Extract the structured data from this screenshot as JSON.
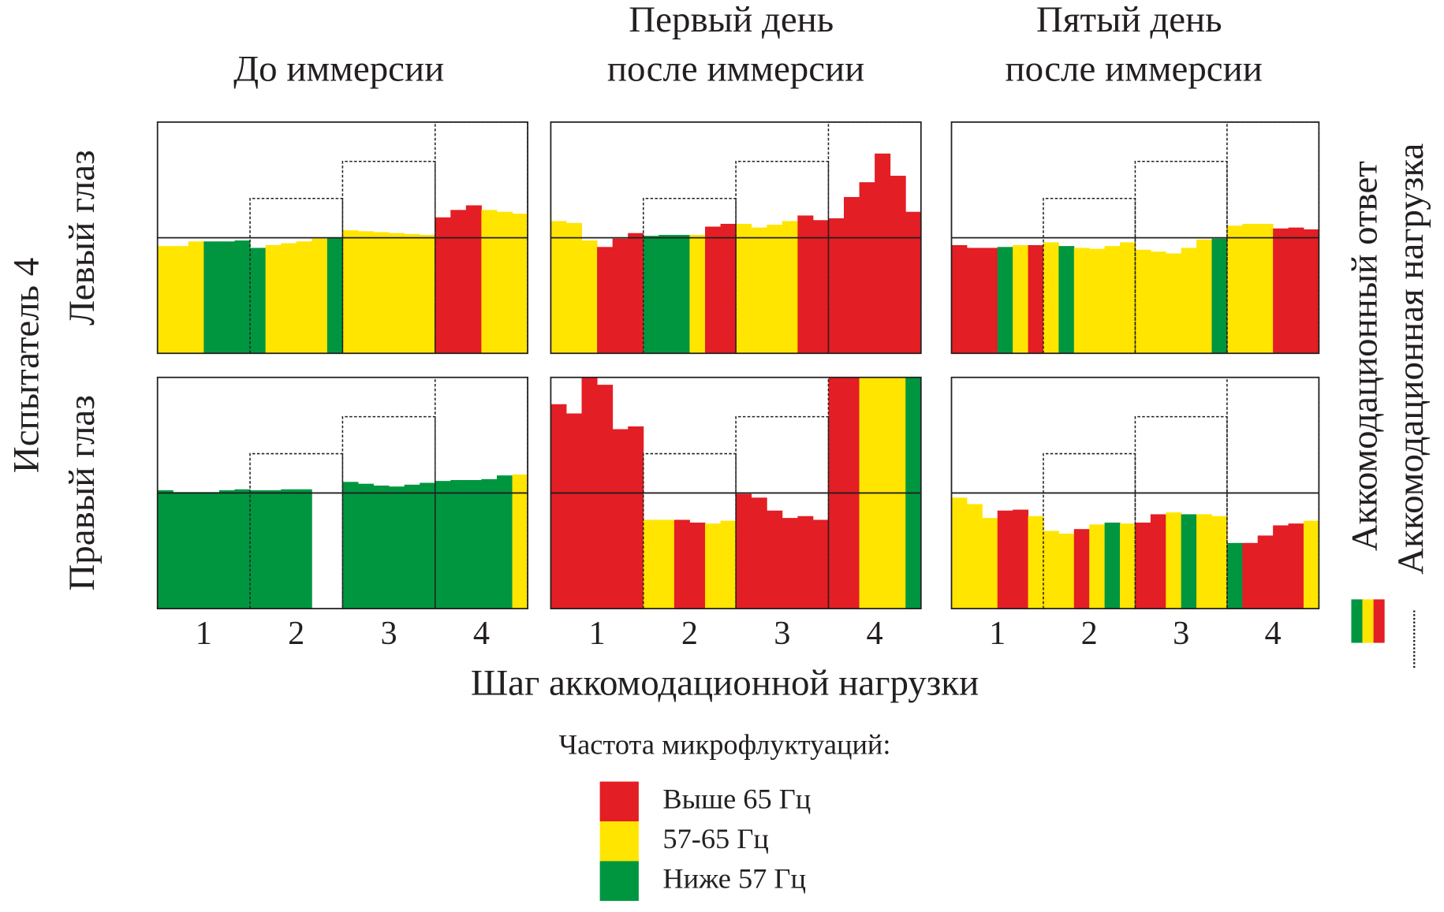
{
  "subject": "Испытатель 4",
  "row_labels": [
    "Левый глаз",
    "Правый глаз"
  ],
  "column_titles": [
    [
      "До иммерсии"
    ],
    [
      "Первый день",
      "после иммерсии"
    ],
    [
      "Пятый день",
      "после иммерсии"
    ]
  ],
  "x_label": "Шаг аккомодационной нагрузки",
  "response_legend": "Аккомодационный ответ",
  "load_legend": "Аккомодационная нагрузка",
  "frequency_legend": {
    "title": "Частота микрофлуктуаций:",
    "items": [
      {
        "name": "Выше 65 Гц",
        "color": "#e31e24"
      },
      {
        "name": "57-65 Гц",
        "color": "#ffe500"
      },
      {
        "name": "Ниже 57 Гц",
        "color": "#009640"
      }
    ]
  },
  "chart_data": [
    {
      "type": "bar",
      "xlim": [
        0.5,
        4.5
      ],
      "ylim": [
        0,
        100
      ],
      "load": [
        50,
        67,
        83,
        100
      ],
      "values": [
        46.4,
        46.4,
        48.4,
        48.4,
        48.4,
        48.8,
        45.6,
        46.8,
        47.6,
        48.4,
        49.6,
        50,
        53.2,
        52.8,
        52.4,
        52,
        51.6,
        51.2,
        58.8,
        62,
        64,
        62,
        61.2,
        60.4
      ],
      "classes": [
        1,
        1,
        1,
        2,
        2,
        2,
        2,
        1,
        1,
        1,
        1,
        2,
        1,
        1,
        1,
        1,
        1,
        1,
        0,
        0,
        0,
        1,
        1,
        1
      ]
    },
    {
      "type": "bar",
      "xlim": [
        0.5,
        4.5
      ],
      "ylim": [
        0,
        100
      ],
      "load": [
        50,
        67,
        83,
        100
      ],
      "values": [
        57.2,
        56.4,
        48.8,
        46,
        49.6,
        52,
        50.8,
        51.2,
        51.2,
        51.2,
        54.8,
        56,
        56,
        54.4,
        55.6,
        57.2,
        59.6,
        57.6,
        58.4,
        67.6,
        74,
        86.4,
        76.8,
        61.2
      ],
      "classes": [
        1,
        1,
        1,
        0,
        0,
        0,
        2,
        2,
        2,
        1,
        0,
        0,
        1,
        1,
        1,
        1,
        0,
        0,
        0,
        0,
        0,
        0,
        0,
        0
      ]
    },
    {
      "type": "bar",
      "xlim": [
        0.5,
        4.5
      ],
      "ylim": [
        0,
        100
      ],
      "load": [
        50,
        67,
        83,
        100
      ],
      "values": [
        46.8,
        45.6,
        45.6,
        46,
        46.8,
        46.8,
        48,
        46.4,
        45.6,
        45.2,
        46.4,
        48,
        44.8,
        44,
        43.2,
        45.6,
        49.2,
        49.6,
        55.2,
        56,
        56,
        54,
        54.4,
        53.6
      ],
      "classes": [
        0,
        0,
        0,
        2,
        1,
        0,
        1,
        2,
        1,
        1,
        1,
        1,
        1,
        1,
        1,
        1,
        1,
        2,
        1,
        1,
        1,
        0,
        0,
        0
      ]
    },
    {
      "type": "bar",
      "xlim": [
        0.5,
        4.5
      ],
      "ylim": [
        0,
        100
      ],
      "load": [
        50,
        67,
        83,
        100
      ],
      "xticks": [
        1,
        2,
        3,
        4
      ],
      "values": [
        51.2,
        50.4,
        50.4,
        50.4,
        51.2,
        51.6,
        51.2,
        51.2,
        51.6,
        51.6,
        null,
        null,
        54.8,
        54,
        53.2,
        52.8,
        53.6,
        54.4,
        55.2,
        55.6,
        55.6,
        56,
        57.6,
        58
      ],
      "classes": [
        2,
        2,
        2,
        2,
        2,
        2,
        2,
        2,
        2,
        2,
        null,
        null,
        2,
        2,
        2,
        2,
        2,
        2,
        2,
        2,
        2,
        2,
        2,
        1
      ]
    },
    {
      "type": "bar",
      "xlim": [
        0.5,
        4.5
      ],
      "ylim": [
        0,
        100
      ],
      "load": [
        50,
        67,
        83,
        100
      ],
      "xticks": [
        1,
        2,
        3,
        4
      ],
      "values": [
        88.4,
        84.4,
        100,
        96.8,
        77.6,
        78.8,
        38.4,
        38.4,
        38.4,
        37.2,
        36.8,
        38,
        49.6,
        48,
        42.4,
        39.2,
        40,
        38.4,
        100,
        100,
        100,
        100,
        100,
        100
      ],
      "classes": [
        0,
        0,
        0,
        0,
        0,
        0,
        1,
        1,
        0,
        0,
        1,
        1,
        0,
        0,
        0,
        0,
        0,
        0,
        0,
        0,
        1,
        1,
        1,
        2
      ]
    },
    {
      "type": "bar",
      "xlim": [
        0.5,
        4.5
      ],
      "ylim": [
        0,
        100
      ],
      "load": [
        50,
        67,
        83,
        100
      ],
      "xticks": [
        1,
        2,
        3,
        4
      ],
      "values": [
        48,
        45.2,
        39.2,
        42.4,
        42.8,
        40,
        33.6,
        32.4,
        34.4,
        36.4,
        37.2,
        36.8,
        37.2,
        40.8,
        41.6,
        40.8,
        40.8,
        40,
        28.4,
        28.4,
        31.6,
        36,
        36.8,
        38
      ],
      "classes": [
        1,
        1,
        1,
        0,
        0,
        1,
        1,
        1,
        0,
        1,
        2,
        1,
        0,
        0,
        1,
        2,
        1,
        1,
        2,
        0,
        0,
        0,
        0,
        1
      ]
    }
  ]
}
